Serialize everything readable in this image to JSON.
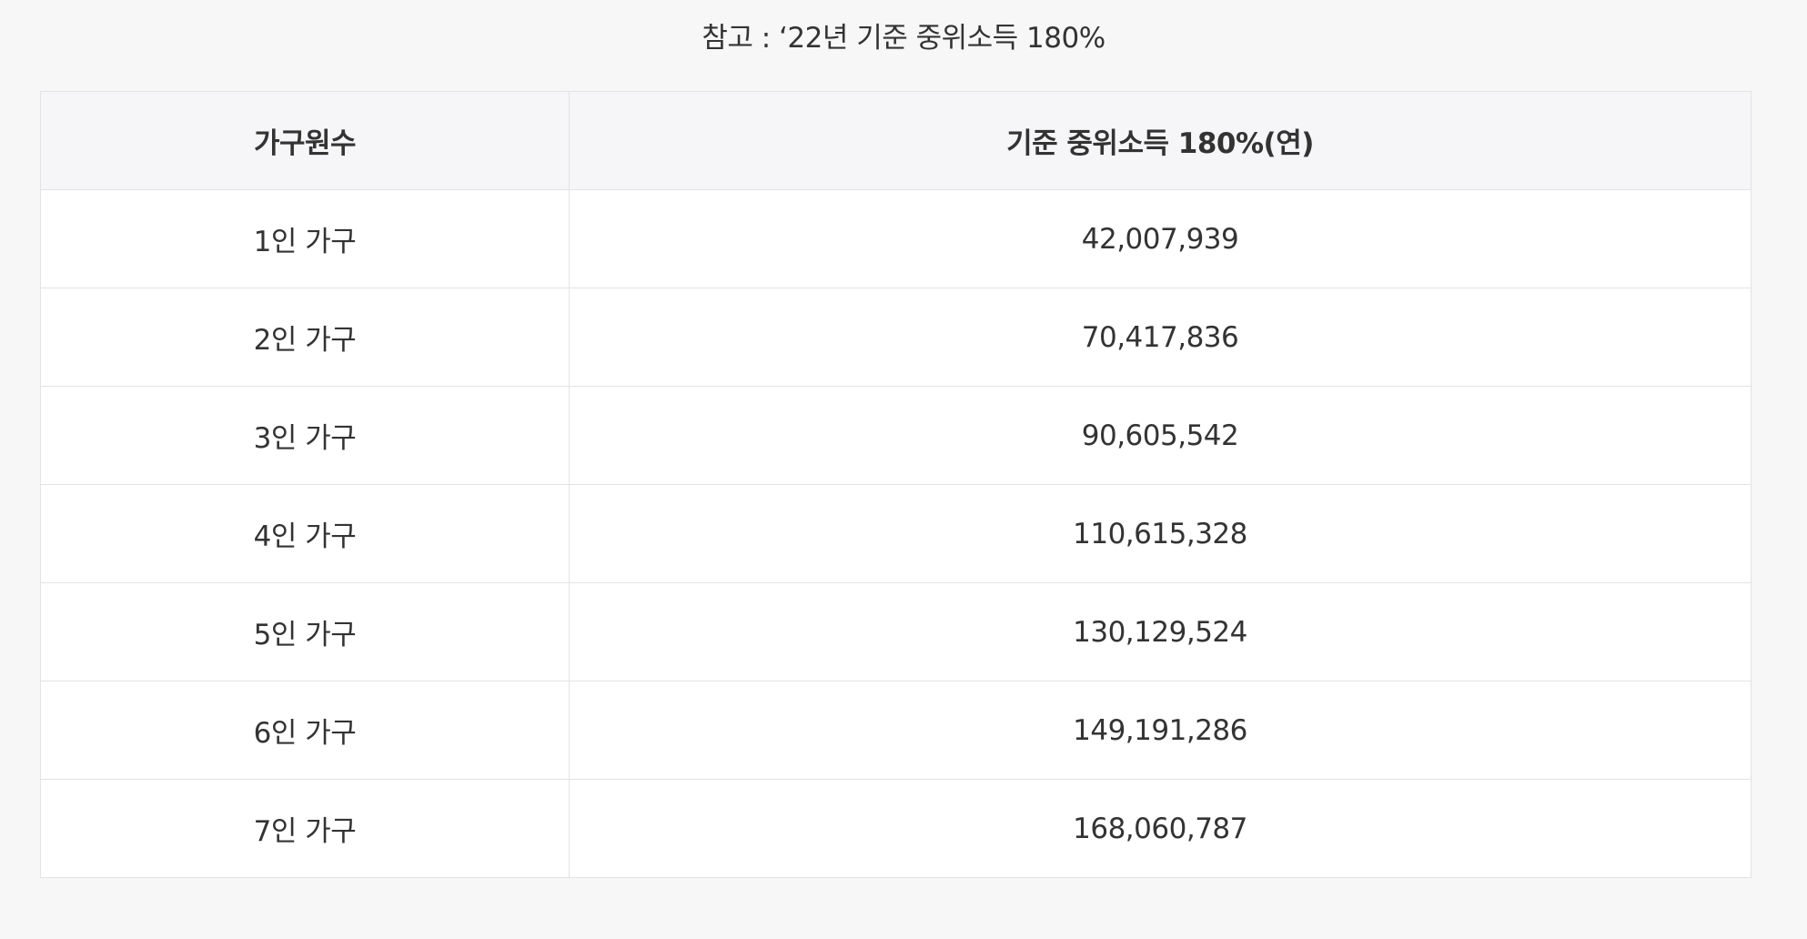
{
  "note": "참고 : ‘22년 기준 중위소득 180%",
  "table": {
    "headers": [
      "가구원수",
      "기준 중위소득 180%(연)"
    ],
    "rows": [
      {
        "household": "1인 가구",
        "income": "42,007,939"
      },
      {
        "household": "2인 가구",
        "income": "70,417,836"
      },
      {
        "household": "3인 가구",
        "income": "90,605,542"
      },
      {
        "household": "4인 가구",
        "income": "110,615,328"
      },
      {
        "household": "5인 가구",
        "income": "130,129,524"
      },
      {
        "household": "6인 가구",
        "income": "149,191,286"
      },
      {
        "household": "7인 가구",
        "income": "168,060,787"
      }
    ]
  }
}
